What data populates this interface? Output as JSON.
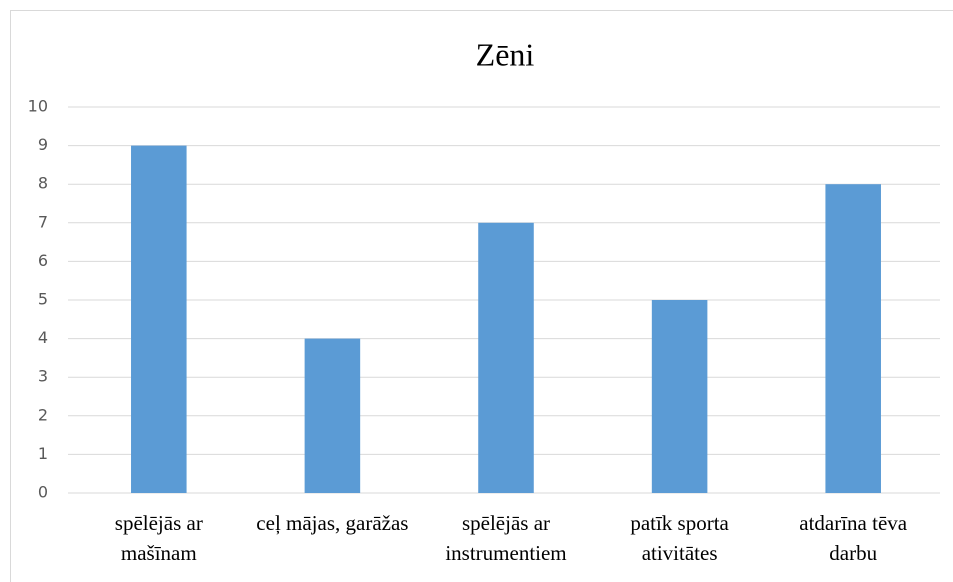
{
  "chart_data": {
    "type": "bar",
    "title": "Zēni",
    "categories": [
      "spēlējās ar mašīnam",
      "ceļ mājas, garāžas",
      "spēlējās ar instrumentiem",
      "patīk sporta ativitātes",
      "atdarīna tēva darbu"
    ],
    "values": [
      9,
      4,
      7,
      5,
      8
    ],
    "color": "#5b9bd5",
    "ylim": [
      0,
      10
    ],
    "yticks": [
      0,
      1,
      2,
      3,
      4,
      5,
      6,
      7,
      8,
      9,
      10
    ],
    "grid": true
  }
}
